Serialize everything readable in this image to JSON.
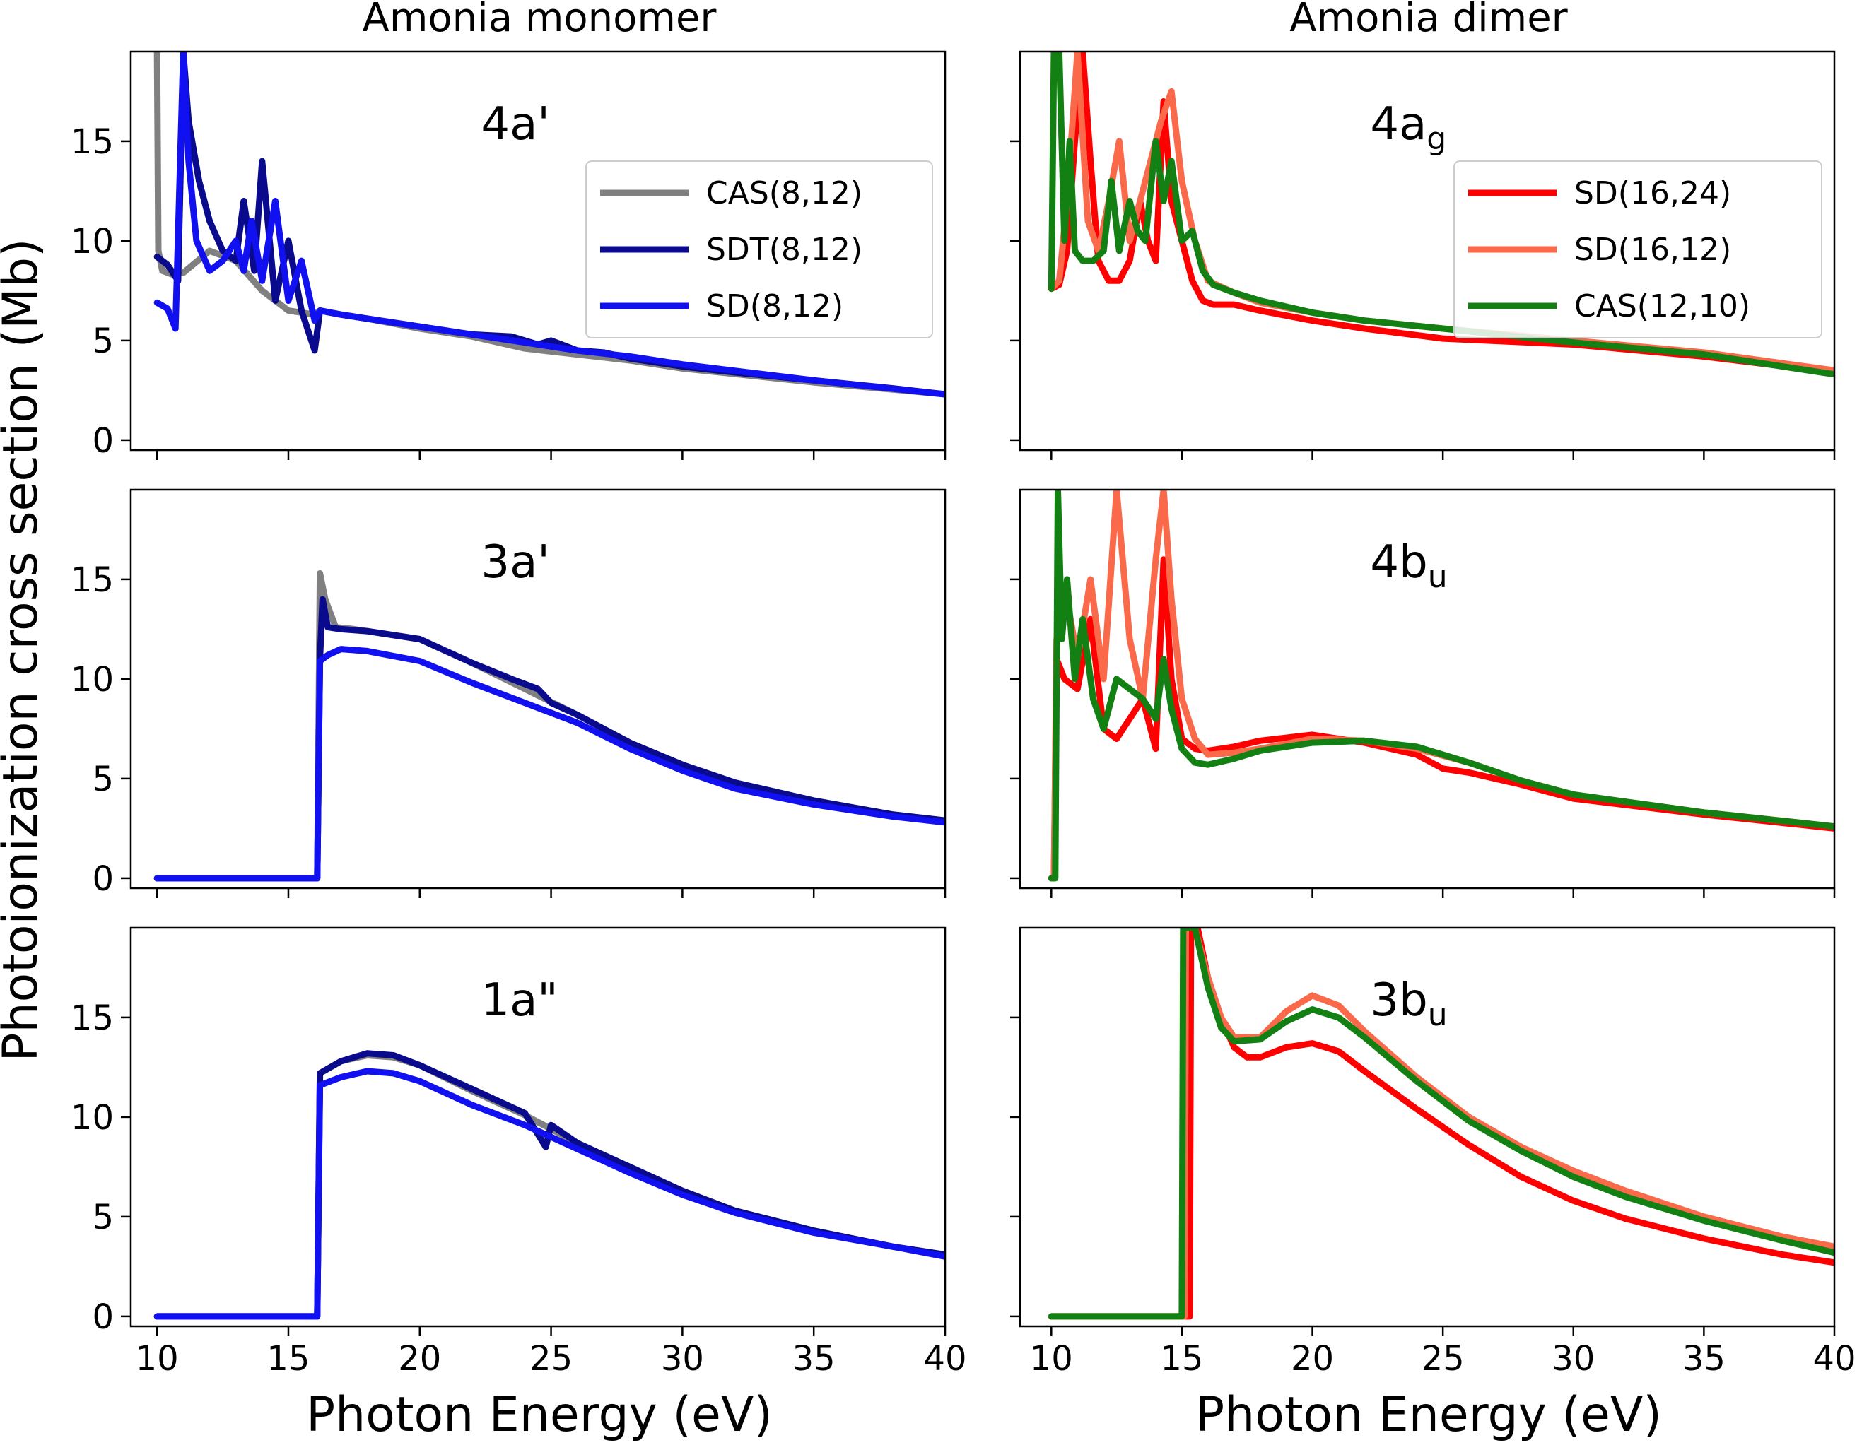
{
  "figure": {
    "col_titles": [
      "Amonia monomer",
      "Amonia dimer"
    ],
    "xlabel": "Photon Energy (eV)",
    "ylabel": "Photoionization cross section (Mb)"
  },
  "chart_data": [
    {
      "type": "line",
      "column": "Amonia monomer",
      "panel_label": "4a'",
      "panel_label_parts": {
        "base": "4a'",
        "sub": ""
      },
      "xlim": [
        9,
        40
      ],
      "ylim": [
        -0.5,
        19.5
      ],
      "xticks": [
        10,
        15,
        20,
        25,
        30,
        35,
        40
      ],
      "yticks": [
        0,
        5,
        10,
        15
      ],
      "show_xticklabels": false,
      "show_yticklabels": true,
      "legend": {
        "location": "top-right",
        "entries": [
          "CAS(8,12)",
          "SDT(8,12)",
          "SD(8,12)"
        ]
      },
      "series": [
        {
          "name": "CAS(8,12)",
          "color": "#808080",
          "x": [
            10,
            10.05,
            10.2,
            10.6,
            11,
            12,
            13,
            14,
            15,
            16,
            16.2,
            17,
            18,
            20,
            22,
            24,
            26,
            28,
            30,
            35,
            40
          ],
          "y": [
            19.5,
            9.5,
            8.5,
            8.3,
            8.4,
            9.5,
            9,
            7.5,
            6.5,
            6.3,
            6.5,
            6.3,
            6.1,
            5.6,
            5.2,
            4.6,
            4.3,
            4.0,
            3.6,
            2.9,
            2.3
          ]
        },
        {
          "name": "SDT(8,12)",
          "color": "#0a0a8c",
          "x": [
            10,
            10.4,
            10.8,
            11,
            11.2,
            11.6,
            12,
            12.5,
            13,
            13.3,
            13.7,
            14,
            14.5,
            15,
            15.5,
            16,
            16.2,
            17,
            18,
            20,
            22,
            23.5,
            24.5,
            25,
            26,
            27,
            28,
            30,
            32,
            35,
            38,
            40
          ],
          "y": [
            9.2,
            8.8,
            8,
            19.5,
            16,
            13,
            11,
            9.5,
            9,
            12,
            8.5,
            14,
            7,
            10,
            6.5,
            4.5,
            6.5,
            6.3,
            6.1,
            5.7,
            5.3,
            5.2,
            4.8,
            5.0,
            4.5,
            4.4,
            4.1,
            3.7,
            3.4,
            3.0,
            2.6,
            2.3
          ]
        },
        {
          "name": "SD(8,12)",
          "color": "#1010f0",
          "x": [
            10,
            10.4,
            10.7,
            11,
            11.2,
            11.5,
            12,
            12.5,
            13,
            13.3,
            13.6,
            14,
            14.5,
            15,
            15.5,
            16,
            16.2,
            17,
            18,
            20,
            22,
            24,
            26,
            28,
            30,
            35,
            40
          ],
          "y": [
            6.9,
            6.6,
            5.6,
            19.5,
            14,
            10,
            8.5,
            9,
            10,
            8.5,
            11,
            8,
            12,
            7,
            9,
            6,
            6.5,
            6.3,
            6.1,
            5.7,
            5.3,
            4.9,
            4.5,
            4.2,
            3.8,
            3.0,
            2.3
          ]
        }
      ]
    },
    {
      "type": "line",
      "column": "Amonia monomer",
      "panel_label": "3a'",
      "panel_label_parts": {
        "base": "3a'",
        "sub": ""
      },
      "xlim": [
        9,
        40
      ],
      "ylim": [
        -0.5,
        19.5
      ],
      "xticks": [
        10,
        15,
        20,
        25,
        30,
        35,
        40
      ],
      "yticks": [
        0,
        5,
        10,
        15
      ],
      "show_xticklabels": false,
      "show_yticklabels": true,
      "legend": null,
      "series": [
        {
          "name": "CAS(8,12)",
          "color": "#808080",
          "x": [
            10,
            16.1,
            16.2,
            16.4,
            16.8,
            17.5,
            20,
            22,
            24,
            26,
            28,
            30,
            32,
            35,
            38,
            40
          ],
          "y": [
            0,
            0,
            15.3,
            14,
            12.6,
            12.5,
            12.0,
            10.8,
            9.5,
            8.2,
            6.8,
            5.6,
            4.6,
            3.8,
            3.2,
            2.9
          ]
        },
        {
          "name": "SDT(8,12)",
          "color": "#0a0a8c",
          "x": [
            10,
            16.1,
            16.2,
            16.3,
            16.5,
            17,
            18,
            20,
            22,
            23.5,
            24.5,
            25,
            26,
            28,
            30,
            32,
            35,
            38,
            40
          ],
          "y": [
            0,
            0,
            11,
            14,
            12.6,
            12.5,
            12.4,
            12.0,
            10.8,
            10.0,
            9.5,
            8.8,
            8.2,
            6.8,
            5.7,
            4.8,
            3.9,
            3.2,
            2.9
          ]
        },
        {
          "name": "SD(8,12)",
          "color": "#1010f0",
          "x": [
            10,
            16.1,
            16.2,
            16.5,
            17,
            18,
            20,
            22,
            24,
            26,
            28,
            30,
            32,
            35,
            38,
            40
          ],
          "y": [
            0,
            0,
            10.9,
            11.2,
            11.5,
            11.4,
            10.9,
            9.8,
            8.8,
            7.8,
            6.5,
            5.4,
            4.5,
            3.7,
            3.1,
            2.8
          ]
        }
      ]
    },
    {
      "type": "line",
      "column": "Amonia monomer",
      "panel_label": "1a\"",
      "panel_label_parts": {
        "base": "1a\"",
        "sub": ""
      },
      "xlim": [
        9,
        40
      ],
      "ylim": [
        -0.5,
        19.5
      ],
      "xticks": [
        10,
        15,
        20,
        25,
        30,
        35,
        40
      ],
      "yticks": [
        0,
        5,
        10,
        15
      ],
      "show_xticklabels": true,
      "show_yticklabels": true,
      "legend": null,
      "series": [
        {
          "name": "CAS(8,12)",
          "color": "#808080",
          "x": [
            10,
            16.1,
            16.2,
            17,
            18,
            19,
            20,
            22,
            24,
            26,
            28,
            30,
            32,
            35,
            38,
            40
          ],
          "y": [
            0,
            0,
            12.2,
            12.8,
            13.1,
            13.0,
            12.6,
            11.3,
            10.1,
            8.7,
            7.4,
            6.3,
            5.3,
            4.3,
            3.5,
            3.1
          ]
        },
        {
          "name": "SDT(8,12)",
          "color": "#0a0a8c",
          "x": [
            10,
            16.1,
            16.2,
            17,
            18,
            19,
            20,
            22,
            24,
            24.8,
            25,
            26,
            28,
            30,
            32,
            35,
            38,
            40
          ],
          "y": [
            0,
            0,
            12.2,
            12.8,
            13.2,
            13.1,
            12.6,
            11.4,
            10.2,
            8.5,
            9.6,
            8.7,
            7.5,
            6.3,
            5.3,
            4.3,
            3.5,
            3.1
          ]
        },
        {
          "name": "SD(8,12)",
          "color": "#1010f0",
          "x": [
            10,
            16.1,
            16.2,
            17,
            18,
            19,
            20,
            22,
            24,
            26,
            28,
            30,
            32,
            35,
            38,
            40
          ],
          "y": [
            0,
            0,
            11.6,
            12.0,
            12.3,
            12.2,
            11.8,
            10.6,
            9.6,
            8.4,
            7.2,
            6.1,
            5.2,
            4.2,
            3.5,
            3.0
          ]
        }
      ]
    },
    {
      "type": "line",
      "column": "Amonia dimer",
      "panel_label": "4ag",
      "panel_label_parts": {
        "base": "4a",
        "sub": "g"
      },
      "xlim": [
        8.8,
        40
      ],
      "ylim": [
        -0.5,
        19.5
      ],
      "xticks": [
        10,
        15,
        20,
        25,
        30,
        35,
        40
      ],
      "yticks": [
        0,
        5,
        10,
        15
      ],
      "show_xticklabels": false,
      "show_yticklabels": false,
      "legend": {
        "location": "top-right",
        "entries": [
          "SD(16,24)",
          "SD(16,12)",
          "CAS(12,10)"
        ]
      },
      "series": [
        {
          "name": "SD(16,24)",
          "color": "#ff0000",
          "x": [
            10,
            10.3,
            10.6,
            10.9,
            11.2,
            11.5,
            11.8,
            12.2,
            12.6,
            13,
            13.4,
            13.7,
            14,
            14.3,
            14.6,
            15,
            15.4,
            15.8,
            16.2,
            17,
            18,
            20,
            22,
            25,
            30,
            35,
            40
          ],
          "y": [
            7.6,
            7.8,
            9.5,
            15,
            19.5,
            14,
            9,
            8,
            8,
            9,
            12,
            10,
            9,
            17,
            12,
            10,
            8,
            7,
            6.8,
            6.8,
            6.5,
            6.0,
            5.6,
            5.1,
            4.8,
            4.2,
            3.4
          ]
        },
        {
          "name": "SD(16,12)",
          "color": "#fa6a4a",
          "x": [
            10,
            10.3,
            10.6,
            11,
            11.4,
            11.8,
            12.2,
            12.6,
            13,
            13.4,
            13.8,
            14.2,
            14.6,
            15,
            15.5,
            16,
            17,
            18,
            20,
            22,
            25,
            30,
            35,
            40
          ],
          "y": [
            7.6,
            8,
            12,
            19.5,
            11,
            9.5,
            12,
            15,
            10,
            12,
            14,
            16,
            17.5,
            13,
            10,
            8,
            7.4,
            6.9,
            6.4,
            6.0,
            5.6,
            5.0,
            4.4,
            3.5
          ]
        },
        {
          "name": "CAS(12,10)",
          "color": "#128012",
          "x": [
            10,
            10.1,
            10.3,
            10.5,
            10.7,
            10.9,
            11.2,
            11.6,
            12,
            12.3,
            12.6,
            13,
            13.3,
            13.6,
            14,
            14.3,
            14.6,
            15,
            15.4,
            15.8,
            16.2,
            17,
            18,
            20,
            22,
            25,
            30,
            35,
            40
          ],
          "y": [
            7.6,
            19.5,
            19.5,
            10,
            15,
            9.5,
            9,
            9,
            9.5,
            13,
            9.5,
            12,
            10.5,
            10,
            15,
            12,
            14,
            10,
            10.5,
            8.5,
            7.8,
            7.4,
            7.0,
            6.4,
            6.0,
            5.6,
            4.9,
            4.3,
            3.3
          ]
        }
      ]
    },
    {
      "type": "line",
      "column": "Amonia dimer",
      "panel_label": "4bu",
      "panel_label_parts": {
        "base": "4b",
        "sub": "u"
      },
      "xlim": [
        8.8,
        40
      ],
      "ylim": [
        -0.5,
        19.5
      ],
      "xticks": [
        10,
        15,
        20,
        25,
        30,
        35,
        40
      ],
      "yticks": [
        0,
        5,
        10,
        15
      ],
      "show_xticklabels": false,
      "show_yticklabels": false,
      "legend": null,
      "series": [
        {
          "name": "SD(16,24)",
          "color": "#ff0000",
          "x": [
            10,
            10.1,
            10.2,
            10.5,
            11,
            11.5,
            12,
            12.5,
            13,
            13.5,
            14,
            14.3,
            14.6,
            15,
            15.5,
            16,
            17,
            18,
            20,
            22,
            24,
            25,
            26,
            28,
            30,
            35,
            40
          ],
          "y": [
            0,
            0,
            11,
            10,
            9.5,
            13,
            7.5,
            7,
            8,
            9,
            6.5,
            16,
            10,
            7,
            6.5,
            6.4,
            6.6,
            6.9,
            7.2,
            6.8,
            6.2,
            5.5,
            5.3,
            4.7,
            4.0,
            3.2,
            2.5
          ]
        },
        {
          "name": "SD(16,12)",
          "color": "#fa6a4a",
          "x": [
            10,
            10.1,
            10.2,
            10.6,
            11,
            11.5,
            12,
            12.5,
            13,
            13.5,
            14,
            14.3,
            14.6,
            15,
            15.5,
            16,
            17,
            18,
            20,
            22,
            24,
            26,
            28,
            30,
            35,
            40
          ],
          "y": [
            0,
            0,
            12,
            14,
            11,
            15,
            10,
            19.5,
            12,
            9,
            16,
            19.5,
            14,
            9,
            7,
            6.2,
            6.3,
            6.5,
            7.0,
            6.9,
            6.5,
            5.8,
            4.9,
            4.2,
            3.3,
            2.6
          ]
        },
        {
          "name": "CAS(12,10)",
          "color": "#128012",
          "x": [
            10,
            10.15,
            10.25,
            10.4,
            10.6,
            10.9,
            11.2,
            11.6,
            12,
            12.5,
            13,
            13.5,
            14,
            14.3,
            14.6,
            15,
            15.5,
            16,
            17,
            18,
            20,
            22,
            24,
            26,
            28,
            30,
            35,
            40
          ],
          "y": [
            0,
            0,
            19.5,
            12,
            15,
            10,
            13,
            9,
            7.5,
            10,
            9.5,
            9,
            8,
            11,
            8.5,
            6.5,
            5.8,
            5.7,
            6.0,
            6.4,
            6.8,
            6.9,
            6.6,
            5.8,
            4.9,
            4.2,
            3.3,
            2.6
          ]
        }
      ]
    },
    {
      "type": "line",
      "column": "Amonia dimer",
      "panel_label": "3bu",
      "panel_label_parts": {
        "base": "3b",
        "sub": "u"
      },
      "xlim": [
        8.8,
        40
      ],
      "ylim": [
        -0.5,
        19.5
      ],
      "xticks": [
        10,
        15,
        20,
        25,
        30,
        35,
        40
      ],
      "yticks": [
        0,
        5,
        10,
        15
      ],
      "show_xticklabels": true,
      "show_yticklabels": false,
      "legend": null,
      "series": [
        {
          "name": "SD(16,24)",
          "color": "#ff0000",
          "x": [
            10,
            15.3,
            15.35,
            15.6,
            16,
            16.5,
            17,
            17.5,
            18,
            19,
            20,
            21,
            22,
            24,
            26,
            28,
            30,
            32,
            35,
            38,
            40
          ],
          "y": [
            0,
            0,
            19.5,
            19.5,
            17,
            15,
            13.5,
            13.0,
            13.0,
            13.5,
            13.7,
            13.3,
            12.3,
            10.4,
            8.6,
            7.0,
            5.8,
            4.9,
            3.9,
            3.1,
            2.7
          ]
        },
        {
          "name": "SD(16,12)",
          "color": "#fa6a4a",
          "x": [
            10,
            15.1,
            15.15,
            15.5,
            16,
            16.5,
            17,
            18,
            19,
            20,
            21,
            22,
            24,
            26,
            28,
            30,
            32,
            35,
            38,
            40
          ],
          "y": [
            0,
            0,
            19.5,
            19.5,
            17,
            15,
            14,
            14,
            15.3,
            16.1,
            15.6,
            14.3,
            12.0,
            10.0,
            8.5,
            7.3,
            6.3,
            5.0,
            4.0,
            3.5
          ]
        },
        {
          "name": "CAS(12,10)",
          "color": "#128012",
          "x": [
            10,
            15.0,
            15.05,
            15.5,
            16,
            16.5,
            17,
            18,
            19,
            20,
            21,
            22,
            24,
            26,
            28,
            30,
            32,
            35,
            38,
            40
          ],
          "y": [
            0,
            0,
            19.5,
            19.5,
            16.5,
            14.5,
            13.8,
            13.9,
            14.8,
            15.4,
            15.0,
            14.0,
            11.8,
            9.8,
            8.3,
            7.0,
            6.0,
            4.8,
            3.8,
            3.2
          ]
        }
      ]
    }
  ]
}
